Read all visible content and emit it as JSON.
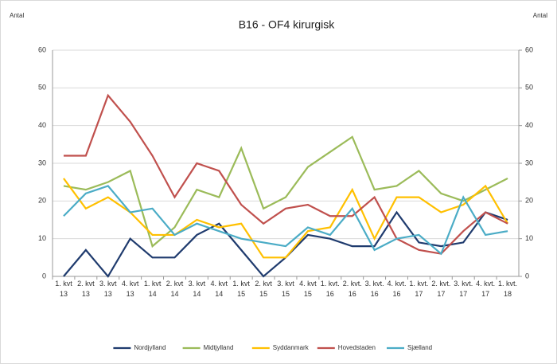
{
  "chart_data": {
    "type": "line",
    "title": "B16 - OF4 kirurgisk",
    "y_label": "Antal",
    "y2_label": "Antal",
    "categories": [
      "1. kvt 13",
      "2. kvt 13",
      "3. kvt 13",
      "4. kvt 13",
      "1. kvt 14",
      "2. kvt 14",
      "3. kvt 14",
      "4. kvt 14",
      "1. kvt 15",
      "2. kvt 15",
      "3. kvt 15",
      "4. kvt 15",
      "1. kvt. 16",
      "2. kvt. 16",
      "3. kvt. 16",
      "4. kvt. 16",
      "1. kvt. 17",
      "2. kvt. 17",
      "3. kvt. 17",
      "4. kvt. 17",
      "1. kvt. 18"
    ],
    "series": [
      {
        "name": "Nordjylland",
        "color": "#1f3b6e",
        "values": [
          0,
          7,
          0,
          10,
          5,
          5,
          11,
          14,
          7,
          0,
          5,
          11,
          10,
          8,
          8,
          17,
          9,
          8,
          9,
          17,
          15
        ]
      },
      {
        "name": "Midtjylland",
        "color": "#9bbb59",
        "values": [
          24,
          23,
          25,
          28,
          8,
          13,
          23,
          21,
          34,
          18,
          21,
          29,
          33,
          37,
          23,
          24,
          28,
          22,
          20,
          23,
          26
        ]
      },
      {
        "name": "Syddanmark",
        "color": "#ffc000",
        "values": [
          26,
          18,
          21,
          17,
          11,
          11,
          15,
          13,
          14,
          5,
          5,
          12,
          13,
          23,
          10,
          21,
          21,
          17,
          19,
          24,
          14
        ]
      },
      {
        "name": "Hovedstaden",
        "color": "#c0504d",
        "values": [
          32,
          32,
          48,
          41,
          32,
          21,
          30,
          28,
          19,
          14,
          18,
          19,
          16,
          16,
          21,
          10,
          7,
          6,
          12,
          17,
          14
        ]
      },
      {
        "name": "Sjælland",
        "color": "#4bacc6",
        "values": [
          16,
          22,
          24,
          17,
          18,
          11,
          14,
          12,
          10,
          9,
          8,
          13,
          11,
          18,
          7,
          10,
          11,
          6,
          21,
          11,
          12
        ]
      }
    ],
    "ylim": [
      0,
      60
    ],
    "yticks": [
      0,
      10,
      20,
      30,
      40,
      50,
      60
    ],
    "y2lim": [
      0,
      60
    ],
    "y2ticks": [
      0,
      10,
      20,
      30,
      40,
      50,
      60
    ],
    "grid": true,
    "legend": "bottom"
  }
}
